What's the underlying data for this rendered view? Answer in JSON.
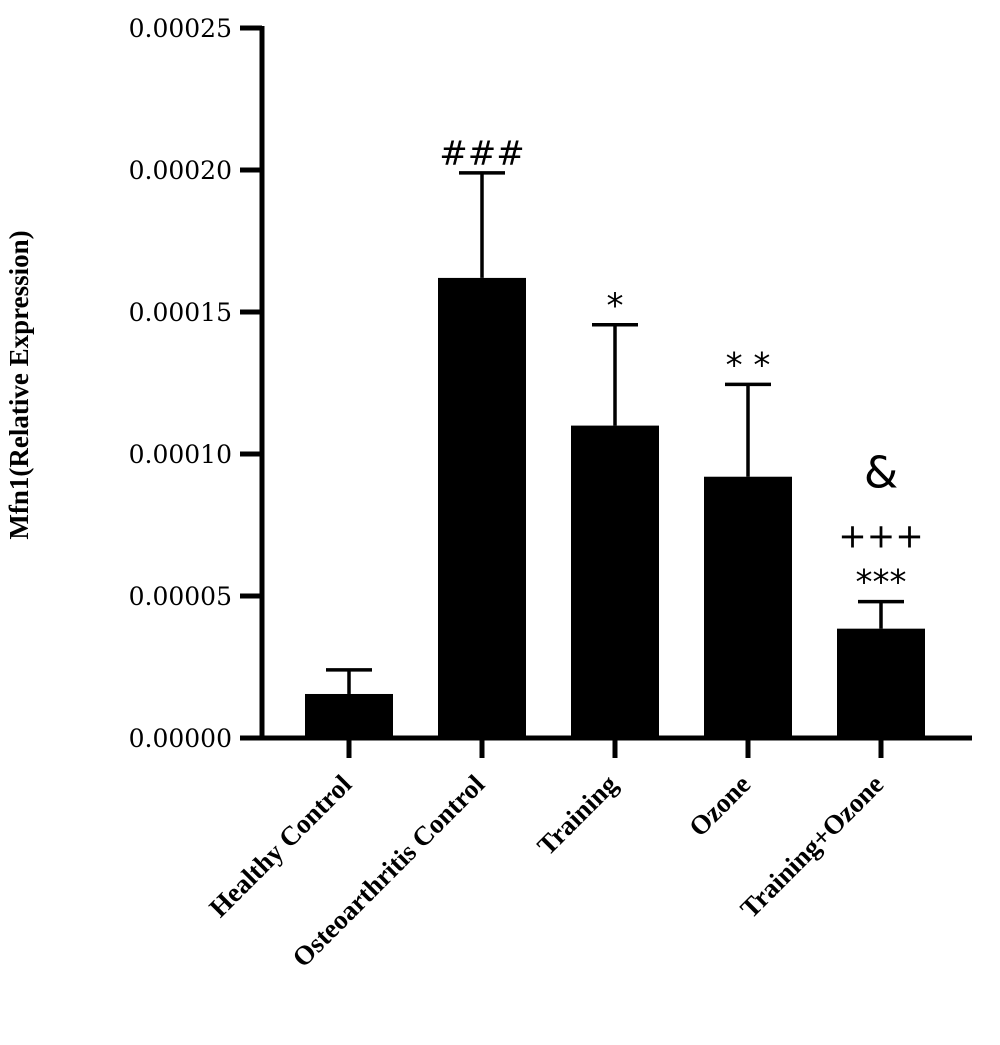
{
  "chart_data": {
    "type": "bar",
    "title": "",
    "xlabel": "",
    "ylabel": "Mfn1(Relative Expression)",
    "ylim": [
      0,
      0.00025
    ],
    "yticks": [
      "0.00000",
      "0.00005",
      "0.00010",
      "0.00015",
      "0.00020",
      "0.00025"
    ],
    "ytick_values": [
      0,
      5e-05,
      0.0001,
      0.00015,
      0.0002,
      0.00025
    ],
    "categories": [
      "Healthy Control",
      "Osteoarthritis Control",
      "Training",
      "Ozone",
      "Training+Ozone"
    ],
    "values": [
      1.55e-05,
      0.000162,
      0.00011,
      9.2e-05,
      3.85e-05
    ],
    "errors": [
      8.5e-06,
      3.7e-05,
      3.55e-05,
      3.25e-05,
      9.5e-06
    ],
    "annotations": [
      [
        "###"
      ],
      [
        "*"
      ],
      [
        "* *"
      ],
      [
        "***",
        "+++",
        "&"
      ]
    ],
    "annotation_categories": [
      1,
      2,
      3,
      4
    ],
    "bar_color": "#000000",
    "grid": false,
    "legend": "none"
  }
}
